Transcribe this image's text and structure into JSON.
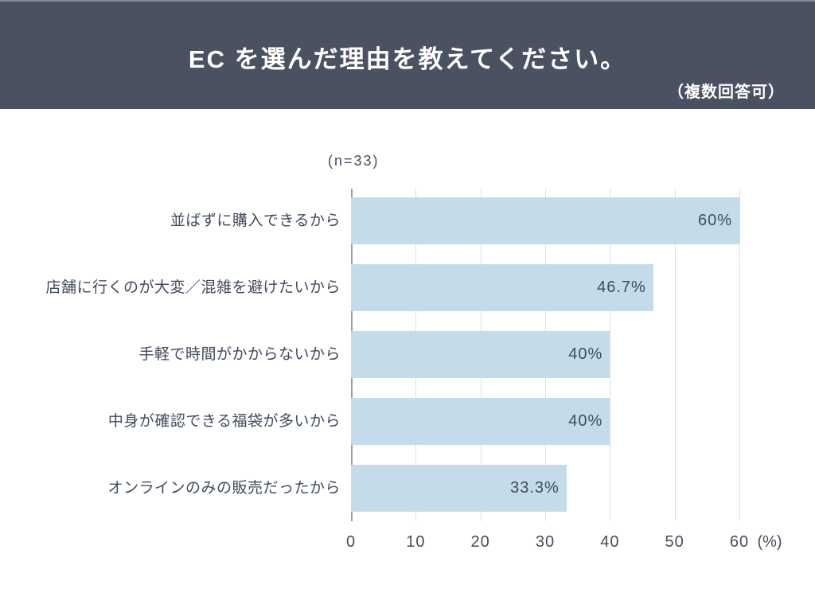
{
  "header": {
    "title": "EC を選んだ理由を教えてください。",
    "note": "（複数回答可）"
  },
  "chart_data": {
    "type": "bar",
    "orientation": "horizontal",
    "title": "EC を選んだ理由を教えてください。",
    "note": "（複数回答可）",
    "sample_size_label": "(n=33)",
    "categories": [
      "並ばずに購入できるから",
      "店舗に行くのが大変／混雑を避けたいから",
      "手軽で時間がかからないから",
      "中身が確認できる福袋が多いから",
      "オンラインのみの販売だったから"
    ],
    "values": [
      60,
      46.7,
      40,
      40,
      33.3
    ],
    "value_labels": [
      "60%",
      "46.7%",
      "40%",
      "40%",
      "33.3%"
    ],
    "xlabel": "",
    "ylabel": "",
    "xlim": [
      0,
      60
    ],
    "x_ticks": [
      "0",
      "10",
      "20",
      "30",
      "40",
      "50",
      "60"
    ],
    "x_unit_label": "(%)",
    "grid": true,
    "legend": false,
    "colors": {
      "bar": "#c4dbea",
      "grid_line": "#dcdfe3",
      "axis_line": "#989ea8",
      "text": "#414b5c",
      "header_bg": "#4a5160",
      "header_text": "#ffffff"
    }
  }
}
